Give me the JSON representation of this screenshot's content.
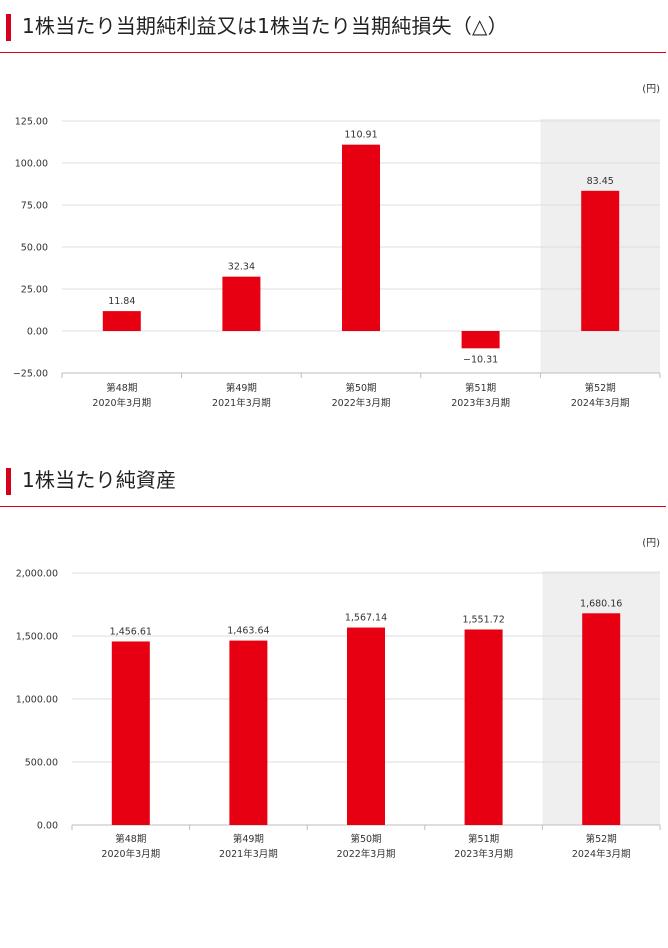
{
  "charts": [
    {
      "title": "1株当たり当期純利益又は1株当たり当期純損失（△）",
      "unit": "(円)",
      "chart_data": {
        "type": "bar",
        "categories": [
          [
            "第48期",
            "2020年3月期"
          ],
          [
            "第49期",
            "2021年3月期"
          ],
          [
            "第50期",
            "2022年3月期"
          ],
          [
            "第51期",
            "2023年3月期"
          ],
          [
            "第52期",
            "2024年3月期"
          ]
        ],
        "values": [
          11.84,
          32.34,
          110.91,
          -10.31,
          83.45
        ],
        "value_labels": [
          "11.84",
          "32.34",
          "110.91",
          "−10.31",
          "83.45"
        ],
        "ylim": [
          -25,
          125
        ],
        "yticks": [
          125,
          100,
          75,
          50,
          25,
          0,
          -25
        ],
        "ytick_labels": [
          "125.00",
          "100.00",
          "75.00",
          "50.00",
          "25.00",
          "0.00",
          "−25.00"
        ],
        "highlight_index": 4,
        "bar_color": "#e60012",
        "highlight_bg": "#efefef",
        "grid": true
      }
    },
    {
      "title": "1株当たり純資産",
      "unit": "(円)",
      "chart_data": {
        "type": "bar",
        "categories": [
          [
            "第48期",
            "2020年3月期"
          ],
          [
            "第49期",
            "2021年3月期"
          ],
          [
            "第50期",
            "2022年3月期"
          ],
          [
            "第51期",
            "2023年3月期"
          ],
          [
            "第52期",
            "2024年3月期"
          ]
        ],
        "values": [
          1456.61,
          1463.64,
          1567.14,
          1551.72,
          1680.16
        ],
        "value_labels": [
          "1,456.61",
          "1,463.64",
          "1,567.14",
          "1,551.72",
          "1,680.16"
        ],
        "ylim": [
          0,
          2000
        ],
        "yticks": [
          2000,
          1500,
          1000,
          500,
          0
        ],
        "ytick_labels": [
          "2,000.00",
          "1,500.00",
          "1,000.00",
          "500.00",
          "0.00"
        ],
        "highlight_index": 4,
        "bar_color": "#e60012",
        "highlight_bg": "#efefef",
        "grid": true
      }
    }
  ]
}
